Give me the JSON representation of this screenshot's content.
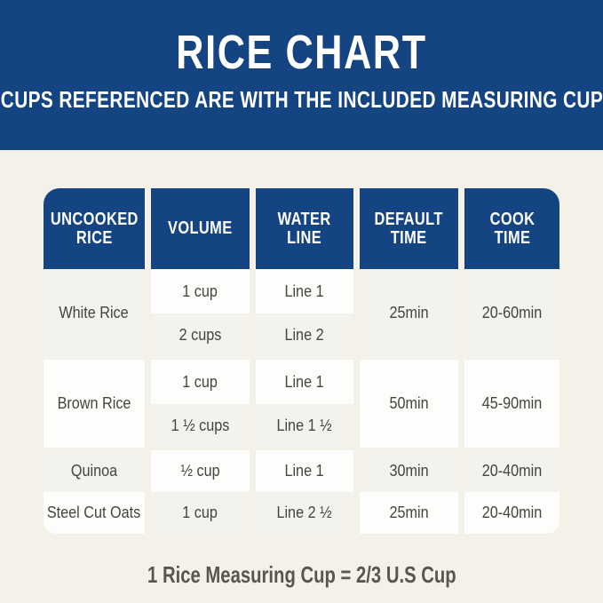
{
  "banner": {
    "title": "RICE CHART",
    "subtitle": "CUPS REFERENCED ARE WITH THE INCLUDED MEASURING CUP",
    "bg_color": "#144481",
    "text_color": "#ffffff"
  },
  "table": {
    "header_bg": "#144481",
    "tile_white": "#fdfdfb",
    "tile_gray": "#f3f2ed",
    "columns": [
      {
        "label": "UNCOOKED RICE",
        "lines": [
          "UNCOOKED",
          "RICE"
        ]
      },
      {
        "label": "VOLUME",
        "lines": [
          "VOLUME"
        ]
      },
      {
        "label": "WATER LINE",
        "lines": [
          "WATER",
          "LINE"
        ]
      },
      {
        "label": "DEFAULT TIME",
        "lines": [
          "DEFAULT",
          "TIME"
        ]
      },
      {
        "label": "COOK TIME",
        "lines": [
          "COOK",
          "TIME"
        ]
      }
    ],
    "rows": [
      {
        "name": "White Rice",
        "entries": [
          {
            "volume": "1 cup",
            "water_line": "Line 1"
          },
          {
            "volume": "2 cups",
            "water_line": "Line 2"
          }
        ],
        "default_time": "25min",
        "cook_time": "20-60min"
      },
      {
        "name": "Brown Rice",
        "entries": [
          {
            "volume": "1 cup",
            "water_line": "Line 1"
          },
          {
            "volume": "1 ½ cups",
            "water_line": "Line 1 ½"
          }
        ],
        "default_time": "50min",
        "cook_time": "45-90min"
      },
      {
        "name": "Quinoa",
        "entries": [
          {
            "volume": "½ cup",
            "water_line": "Line 1"
          }
        ],
        "default_time": "30min",
        "cook_time": "20-40min"
      },
      {
        "name": "Steel Cut Oats",
        "entries": [
          {
            "volume": "1 cup",
            "water_line": "Line 2 ½"
          }
        ],
        "default_time": "25min",
        "cook_time": "20-40min"
      }
    ]
  },
  "footer": {
    "note": "1 Rice Measuring Cup = 2/3 U.S Cup"
  },
  "chart_data": {
    "type": "table",
    "title": "RICE CHART",
    "subtitle": "CUPS REFERENCED ARE WITH THE INCLUDED MEASURING CUP",
    "columns": [
      "UNCOOKED RICE",
      "VOLUME",
      "WATER LINE",
      "DEFAULT TIME",
      "COOK TIME"
    ],
    "rows": [
      [
        "White Rice",
        "1 cup",
        "Line 1",
        "25min",
        "20-60min"
      ],
      [
        "White Rice",
        "2 cups",
        "Line 2",
        "25min",
        "20-60min"
      ],
      [
        "Brown Rice",
        "1 cup",
        "Line 1",
        "50min",
        "45-90min"
      ],
      [
        "Brown Rice",
        "1 ½ cups",
        "Line 1 ½",
        "50min",
        "45-90min"
      ],
      [
        "Quinoa",
        "½ cup",
        "Line 1",
        "30min",
        "20-40min"
      ],
      [
        "Steel Cut Oats",
        "1 cup",
        "Line 2 ½",
        "25min",
        "20-40min"
      ]
    ],
    "note": "1 Rice Measuring Cup = 2/3 U.S Cup",
    "layout": {
      "grid": "off",
      "header_position": "top",
      "accent_color": "#144481"
    }
  }
}
